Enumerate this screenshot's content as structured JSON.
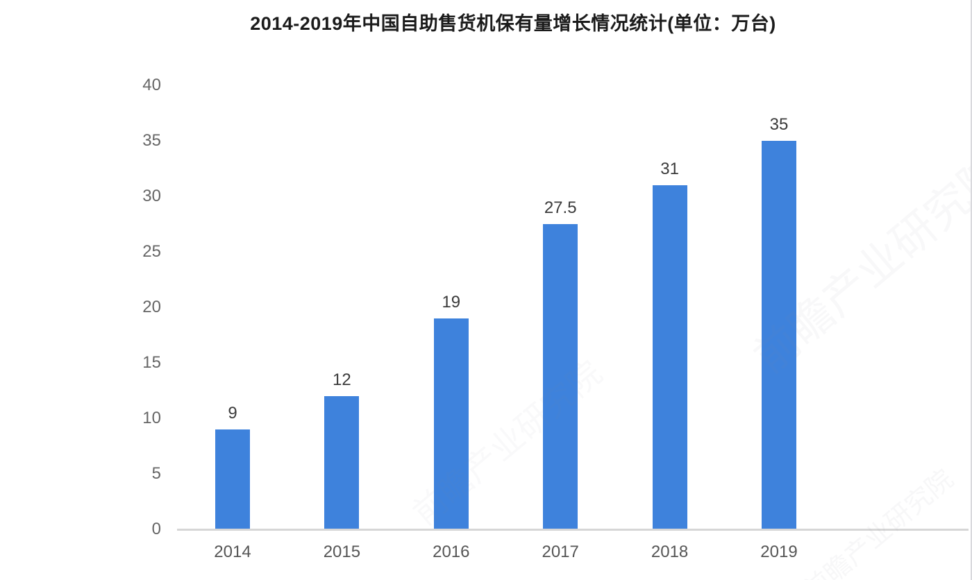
{
  "title": "2014-2019年中国自助售货机保有量增长情况统计(单位：万台)",
  "chart_data": {
    "type": "bar",
    "title": "2014-2019年中国自助售货机保有量增长情况统计(单位：万台)",
    "categories": [
      "2014",
      "2015",
      "2016",
      "2017",
      "2018",
      "2019"
    ],
    "values": [
      9,
      12,
      19,
      27.5,
      31,
      35
    ],
    "value_labels": [
      "9",
      "12",
      "19",
      "27.5",
      "31",
      "35"
    ],
    "xlabel": "",
    "ylabel": "",
    "ylim": [
      0,
      40
    ],
    "y_ticks": [
      0,
      5,
      10,
      15,
      20,
      25,
      30,
      35,
      40
    ],
    "grid": false,
    "legend": false,
    "bar_color": "#3E82DC",
    "unit": "万台"
  },
  "colors": {
    "bar": "#3E82DC",
    "baseline": "#d6d6d6",
    "title_text": "#1b1b1b",
    "tick_text": "#666666",
    "value_text": "#3a3a3a",
    "background": "#ffffff"
  },
  "watermark": {
    "text": "前瞻产业研究院"
  }
}
